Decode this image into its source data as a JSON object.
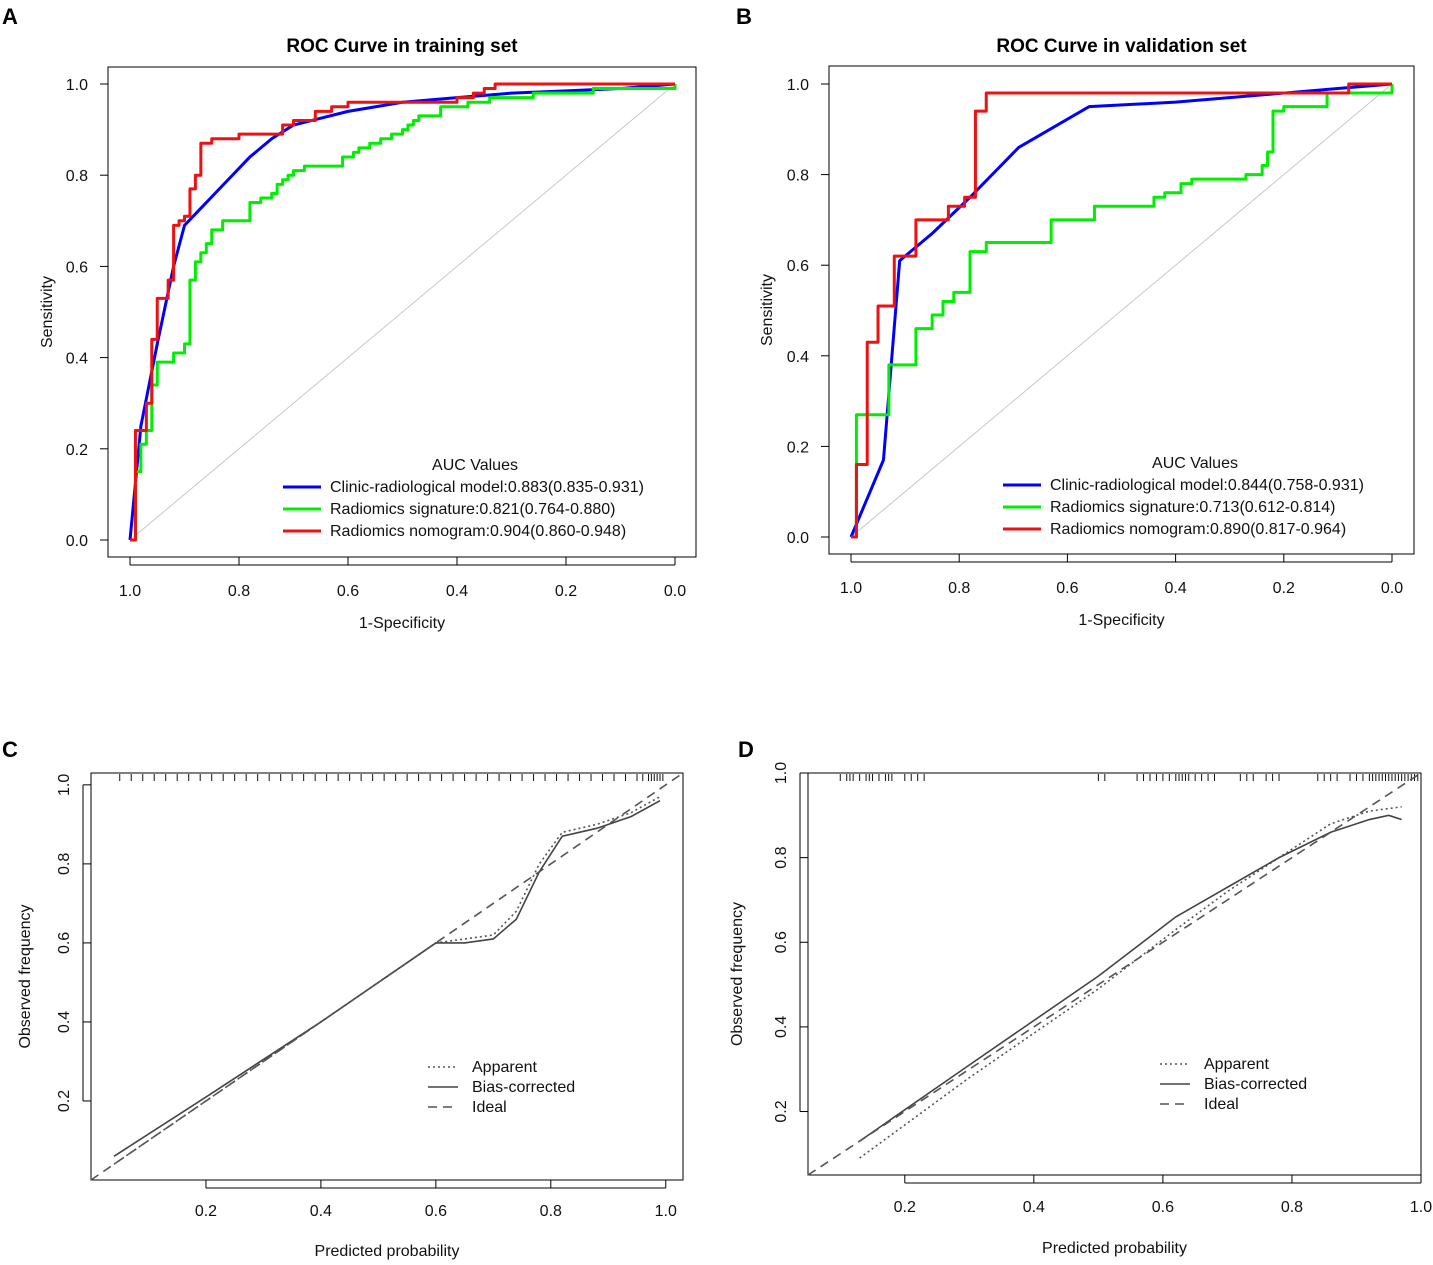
{
  "chart_data": [
    {
      "panel": "A",
      "type": "line",
      "title": "ROC Curve in training set",
      "xlabel": "1-Specificity",
      "ylabel": "Sensitivity",
      "xlim": [
        1.0,
        0.0
      ],
      "ylim": [
        0.0,
        1.0
      ],
      "xticks": [
        "1.0",
        "0.8",
        "0.6",
        "0.4",
        "0.2",
        "0.0"
      ],
      "yticks": [
        "0.0",
        "0.2",
        "0.4",
        "0.6",
        "0.8",
        "1.0"
      ],
      "legend_title": "AUC Values",
      "legend_position": "bottom-right",
      "series": [
        {
          "name": "Clinic-radiological model:0.883(0.835-0.931)",
          "color": "#0000ff",
          "x": [
            1.0,
            0.98,
            0.95,
            0.92,
            0.9,
            0.86,
            0.82,
            0.78,
            0.74,
            0.7,
            0.6,
            0.5,
            0.4,
            0.3,
            0.2,
            0.1,
            0.0
          ],
          "y": [
            0.0,
            0.25,
            0.43,
            0.6,
            0.69,
            0.74,
            0.79,
            0.84,
            0.88,
            0.91,
            0.94,
            0.96,
            0.97,
            0.98,
            0.985,
            0.99,
            1.0
          ]
        },
        {
          "name": "Radiomics signature:0.821(0.764-0.880)",
          "color": "#00ee00",
          "x": [
            1.0,
            0.99,
            0.98,
            0.97,
            0.96,
            0.95,
            0.94,
            0.93,
            0.92,
            0.91,
            0.9,
            0.89,
            0.88,
            0.87,
            0.86,
            0.85,
            0.84,
            0.83,
            0.82,
            0.8,
            0.78,
            0.77,
            0.76,
            0.74,
            0.73,
            0.72,
            0.71,
            0.7,
            0.69,
            0.68,
            0.67,
            0.65,
            0.63,
            0.61,
            0.6,
            0.59,
            0.58,
            0.57,
            0.56,
            0.55,
            0.54,
            0.52,
            0.51,
            0.5,
            0.49,
            0.48,
            0.47,
            0.46,
            0.45,
            0.43,
            0.4,
            0.38,
            0.36,
            0.34,
            0.3,
            0.26,
            0.2,
            0.15,
            0.1,
            0.0
          ],
          "y": [
            0.0,
            0.15,
            0.21,
            0.24,
            0.34,
            0.39,
            0.39,
            0.39,
            0.41,
            0.41,
            0.43,
            0.57,
            0.61,
            0.63,
            0.65,
            0.68,
            0.68,
            0.7,
            0.7,
            0.7,
            0.74,
            0.74,
            0.75,
            0.76,
            0.78,
            0.79,
            0.8,
            0.81,
            0.81,
            0.82,
            0.82,
            0.82,
            0.82,
            0.84,
            0.84,
            0.85,
            0.86,
            0.86,
            0.87,
            0.87,
            0.88,
            0.89,
            0.89,
            0.9,
            0.91,
            0.92,
            0.93,
            0.93,
            0.93,
            0.95,
            0.95,
            0.96,
            0.96,
            0.97,
            0.97,
            0.98,
            0.98,
            0.99,
            0.99,
            1.0
          ],
          "step": true
        },
        {
          "name": "Radiomics nomogram:0.904(0.860-0.948)",
          "color": "#ee1111",
          "x": [
            1.0,
            0.99,
            0.98,
            0.97,
            0.96,
            0.95,
            0.94,
            0.93,
            0.92,
            0.91,
            0.9,
            0.89,
            0.88,
            0.87,
            0.86,
            0.85,
            0.84,
            0.82,
            0.8,
            0.77,
            0.75,
            0.72,
            0.7,
            0.68,
            0.66,
            0.63,
            0.6,
            0.5,
            0.4,
            0.37,
            0.35,
            0.33,
            0.3,
            0.0
          ],
          "y": [
            0.0,
            0.24,
            0.24,
            0.3,
            0.44,
            0.53,
            0.53,
            0.57,
            0.69,
            0.7,
            0.71,
            0.77,
            0.8,
            0.87,
            0.87,
            0.88,
            0.88,
            0.88,
            0.89,
            0.89,
            0.89,
            0.91,
            0.92,
            0.92,
            0.94,
            0.95,
            0.96,
            0.96,
            0.97,
            0.98,
            0.99,
            1.0,
            1.0,
            1.0
          ],
          "step": true
        }
      ]
    },
    {
      "panel": "B",
      "type": "line",
      "title": "ROC Curve in validation set",
      "xlabel": "1-Specificity",
      "ylabel": "Sensitivity",
      "xlim": [
        1.0,
        0.0
      ],
      "ylim": [
        0.0,
        1.0
      ],
      "xticks": [
        "1.0",
        "0.8",
        "0.6",
        "0.4",
        "0.2",
        "0.0"
      ],
      "yticks": [
        "0.0",
        "0.2",
        "0.4",
        "0.6",
        "0.8",
        "1.0"
      ],
      "legend_title": "AUC Values",
      "legend_position": "bottom-right",
      "series": [
        {
          "name": "Clinic-radiological model:0.844(0.758-0.931)",
          "color": "#0000ff",
          "x": [
            1.0,
            0.94,
            0.91,
            0.85,
            0.78,
            0.69,
            0.56,
            0.4,
            0.2,
            0.1,
            0.0
          ],
          "y": [
            0.0,
            0.17,
            0.61,
            0.67,
            0.75,
            0.86,
            0.95,
            0.96,
            0.98,
            0.99,
            1.0
          ]
        },
        {
          "name": "Radiomics signature:0.713(0.612-0.814)",
          "color": "#00ee00",
          "x": [
            1.0,
            0.99,
            0.94,
            0.93,
            0.88,
            0.85,
            0.83,
            0.81,
            0.78,
            0.77,
            0.75,
            0.69,
            0.63,
            0.55,
            0.48,
            0.44,
            0.42,
            0.39,
            0.37,
            0.35,
            0.32,
            0.29,
            0.27,
            0.24,
            0.23,
            0.22,
            0.2,
            0.12,
            0.0
          ],
          "y": [
            0.0,
            0.27,
            0.27,
            0.38,
            0.46,
            0.49,
            0.52,
            0.54,
            0.63,
            0.63,
            0.65,
            0.65,
            0.7,
            0.73,
            0.73,
            0.75,
            0.76,
            0.78,
            0.79,
            0.79,
            0.79,
            0.79,
            0.8,
            0.82,
            0.85,
            0.94,
            0.95,
            0.98,
            1.0
          ],
          "step": true
        },
        {
          "name": "Radiomics nomogram:0.890(0.817-0.964)",
          "color": "#ee1111",
          "x": [
            1.0,
            0.99,
            0.97,
            0.95,
            0.92,
            0.88,
            0.85,
            0.82,
            0.79,
            0.77,
            0.75,
            0.6,
            0.3,
            0.1,
            0.08,
            0.0
          ],
          "y": [
            0.0,
            0.16,
            0.43,
            0.51,
            0.62,
            0.7,
            0.7,
            0.73,
            0.75,
            0.94,
            0.98,
            0.98,
            0.98,
            0.98,
            1.0,
            1.0
          ],
          "step": true
        }
      ]
    },
    {
      "panel": "C",
      "type": "line",
      "title": "",
      "xlabel": "Predicted probability",
      "ylabel": "Observed frequency",
      "xlim": [
        0.0,
        1.03
      ],
      "ylim": [
        0.0,
        1.03
      ],
      "xticks": [
        "0.2",
        "0.4",
        "0.6",
        "0.8",
        "1.0"
      ],
      "yticks": [
        "0.2",
        "0.4",
        "0.6",
        "0.8",
        "1.0"
      ],
      "legend_position": "bottom-right",
      "series": [
        {
          "name": "Apparent",
          "style": "dotted",
          "x": [
            0.04,
            0.2,
            0.4,
            0.55,
            0.6,
            0.65,
            0.7,
            0.74,
            0.78,
            0.82,
            0.88,
            0.94,
            0.99
          ],
          "y": [
            0.04,
            0.2,
            0.4,
            0.55,
            0.6,
            0.61,
            0.62,
            0.68,
            0.8,
            0.88,
            0.9,
            0.93,
            0.97
          ]
        },
        {
          "name": "Bias-corrected",
          "style": "solid",
          "x": [
            0.04,
            0.2,
            0.4,
            0.55,
            0.6,
            0.65,
            0.7,
            0.74,
            0.78,
            0.82,
            0.88,
            0.94,
            0.99
          ],
          "y": [
            0.06,
            0.21,
            0.4,
            0.55,
            0.6,
            0.6,
            0.61,
            0.66,
            0.78,
            0.87,
            0.89,
            0.92,
            0.96
          ]
        },
        {
          "name": "Ideal",
          "style": "dashed",
          "x": [
            0.0,
            1.03
          ],
          "y": [
            0.0,
            1.03
          ]
        }
      ]
    },
    {
      "panel": "D",
      "type": "line",
      "title": "",
      "xlabel": "Predicted probability",
      "ylabel": "Observed frequency",
      "xlim": [
        0.05,
        1.0
      ],
      "ylim": [
        0.05,
        1.0
      ],
      "xticks": [
        "0.2",
        "0.4",
        "0.6",
        "0.8",
        "1.0"
      ],
      "yticks": [
        "0.2",
        "0.4",
        "0.6",
        "0.8",
        "1.0"
      ],
      "legend_position": "bottom-right",
      "series": [
        {
          "name": "Apparent",
          "style": "dotted",
          "x": [
            0.13,
            0.3,
            0.5,
            0.62,
            0.7,
            0.78,
            0.86,
            0.92,
            0.97
          ],
          "y": [
            0.09,
            0.28,
            0.49,
            0.63,
            0.72,
            0.8,
            0.88,
            0.91,
            0.92
          ]
        },
        {
          "name": "Bias-corrected",
          "style": "solid",
          "x": [
            0.13,
            0.3,
            0.5,
            0.62,
            0.7,
            0.78,
            0.86,
            0.92,
            0.95,
            0.97
          ],
          "y": [
            0.13,
            0.31,
            0.52,
            0.66,
            0.73,
            0.8,
            0.86,
            0.89,
            0.9,
            0.89
          ]
        },
        {
          "name": "Ideal",
          "style": "dashed",
          "x": [
            0.05,
            1.0
          ],
          "y": [
            0.05,
            1.0
          ]
        }
      ]
    }
  ],
  "rugs": {
    "C": [
      0.05,
      0.07,
      0.09,
      0.11,
      0.13,
      0.15,
      0.17,
      0.19,
      0.21,
      0.23,
      0.25,
      0.27,
      0.29,
      0.31,
      0.33,
      0.35,
      0.37,
      0.39,
      0.41,
      0.43,
      0.45,
      0.47,
      0.49,
      0.51,
      0.53,
      0.55,
      0.57,
      0.59,
      0.61,
      0.63,
      0.65,
      0.67,
      0.69,
      0.71,
      0.73,
      0.75,
      0.77,
      0.79,
      0.81,
      0.83,
      0.85,
      0.87,
      0.89,
      0.91,
      0.93,
      0.95,
      0.96,
      0.97,
      0.975,
      0.98,
      0.985,
      0.99,
      0.995
    ],
    "D": [
      0.1,
      0.11,
      0.115,
      0.12,
      0.13,
      0.14,
      0.145,
      0.15,
      0.16,
      0.17,
      0.175,
      0.18,
      0.2,
      0.21,
      0.22,
      0.23,
      0.5,
      0.51,
      0.56,
      0.57,
      0.58,
      0.59,
      0.6,
      0.61,
      0.62,
      0.625,
      0.63,
      0.635,
      0.64,
      0.65,
      0.66,
      0.67,
      0.68,
      0.72,
      0.73,
      0.74,
      0.76,
      0.77,
      0.78,
      0.84,
      0.85,
      0.86,
      0.87,
      0.89,
      0.9,
      0.91,
      0.92,
      0.925,
      0.93,
      0.935,
      0.94,
      0.945,
      0.95,
      0.955,
      0.96,
      0.965,
      0.97,
      0.975,
      0.98,
      0.985,
      0.99,
      0.995
    ]
  },
  "panels": {
    "A": {
      "letter": "A"
    },
    "B": {
      "letter": "B"
    },
    "C": {
      "letter": "C"
    },
    "D": {
      "letter": "D"
    }
  }
}
